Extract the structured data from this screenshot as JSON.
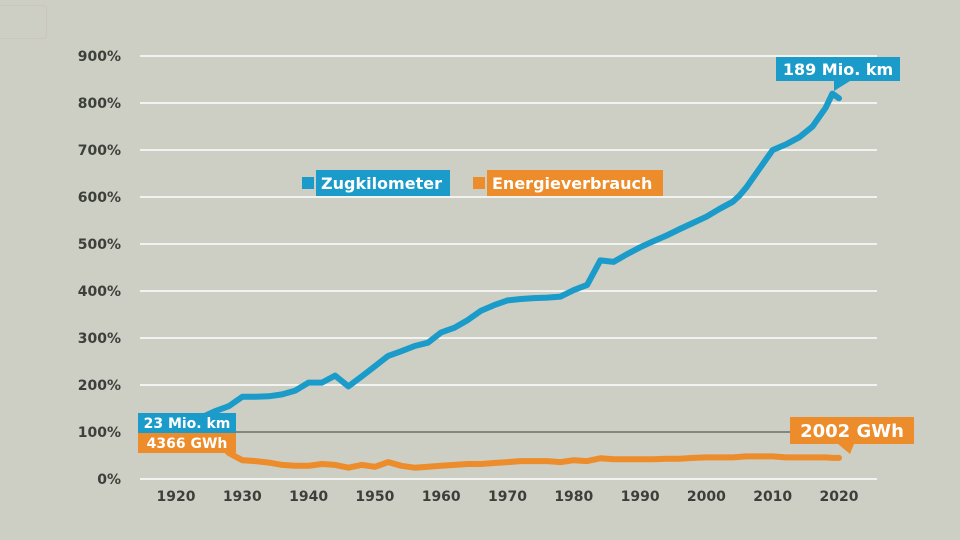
{
  "chart_data": {
    "type": "line",
    "ylim": [
      0,
      900
    ],
    "xlim": [
      1910,
      2030
    ],
    "y_ticks": [
      0,
      100,
      200,
      300,
      400,
      500,
      600,
      700,
      800,
      900
    ],
    "y_tick_labels": [
      "0%",
      "100%",
      "200%",
      "300%",
      "400%",
      "500%",
      "600%",
      "700%",
      "800%",
      "900%"
    ],
    "x_ticks": [
      1920,
      1930,
      1940,
      1950,
      1960,
      1970,
      1980,
      1990,
      2000,
      2010,
      2020
    ],
    "x_tick_labels": [
      "1920",
      "1930",
      "1940",
      "1950",
      "1960",
      "1970",
      "1980",
      "1990",
      "2000",
      "2010",
      "2020"
    ],
    "grid": true,
    "reference_line": 100,
    "legend_position": "top-center",
    "series": [
      {
        "name": "Zugkilometer",
        "color": "#1a9bc9",
        "x": [
          1919,
          1920,
          1922,
          1924,
          1926,
          1928,
          1930,
          1932,
          1934,
          1936,
          1938,
          1940,
          1942,
          1944,
          1946,
          1948,
          1950,
          1952,
          1954,
          1956,
          1958,
          1960,
          1962,
          1964,
          1966,
          1968,
          1970,
          1972,
          1974,
          1976,
          1978,
          1980,
          1982,
          1984,
          1986,
          1988,
          1990,
          1992,
          1994,
          1996,
          1998,
          2000,
          2002,
          2004,
          2005,
          2006,
          2008,
          2010,
          2012,
          2014,
          2016,
          2018,
          2019,
          2020
        ],
        "y": [
          110,
          118,
          120,
          132,
          145,
          155,
          175,
          175,
          176,
          180,
          188,
          205,
          205,
          220,
          197,
          218,
          240,
          262,
          272,
          283,
          290,
          312,
          322,
          338,
          358,
          370,
          380,
          383,
          385,
          386,
          388,
          402,
          413,
          465,
          462,
          478,
          493,
          506,
          518,
          532,
          545,
          558,
          575,
          590,
          603,
          620,
          660,
          700,
          712,
          727,
          750,
          790,
          820,
          810
        ]
      },
      {
        "name": "Energieverbrauch",
        "color": "#ec8c2a",
        "x": [
          1919,
          1920,
          1922,
          1924,
          1926,
          1928,
          1930,
          1932,
          1934,
          1936,
          1938,
          1940,
          1942,
          1944,
          1946,
          1948,
          1950,
          1952,
          1954,
          1956,
          1958,
          1960,
          1962,
          1964,
          1966,
          1968,
          1970,
          1972,
          1974,
          1976,
          1978,
          1980,
          1982,
          1984,
          1986,
          1988,
          1990,
          1992,
          1994,
          1996,
          1998,
          2000,
          2002,
          2004,
          2005,
          2006,
          2008,
          2010,
          2012,
          2014,
          2016,
          2018,
          2019,
          2020
        ],
        "y": [
          85,
          88,
          90,
          92,
          82,
          55,
          40,
          38,
          35,
          30,
          28,
          28,
          32,
          30,
          24,
          30,
          26,
          36,
          28,
          24,
          26,
          28,
          30,
          32,
          32,
          34,
          36,
          38,
          38,
          38,
          36,
          40,
          38,
          44,
          42,
          42,
          42,
          42,
          43,
          43,
          45,
          46,
          46,
          46,
          47,
          48,
          48,
          48,
          46,
          46,
          46,
          46,
          45,
          45
        ]
      }
    ],
    "annotations": [
      {
        "text": "23 Mio. km",
        "series": "Zugkilometer",
        "position": "start"
      },
      {
        "text": "4366 GWh",
        "series": "Energieverbrauch",
        "position": "start"
      },
      {
        "text": "189 Mio. km",
        "series": "Zugkilometer",
        "position": "end"
      },
      {
        "text": "2002 GWh",
        "series": "Energieverbrauch",
        "position": "end"
      }
    ]
  }
}
